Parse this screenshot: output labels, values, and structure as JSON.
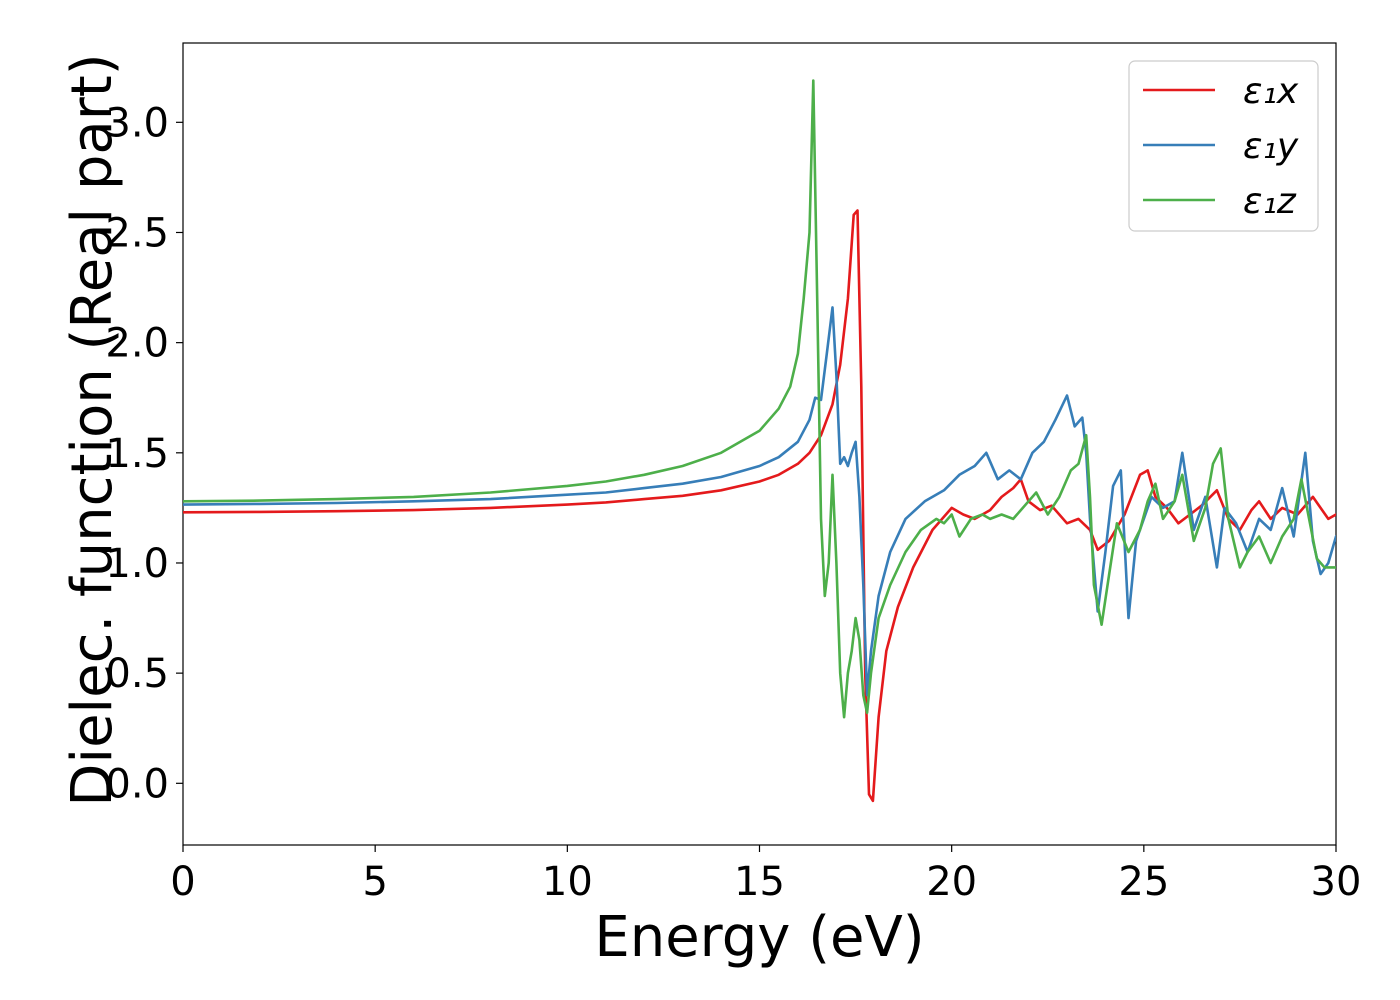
{
  "chart_data": {
    "type": "line",
    "title": "",
    "xlabel": "Energy (eV)",
    "ylabel": "Dielec. function (Real part)",
    "xlim": [
      0,
      30
    ],
    "ylim": [
      -0.28,
      3.36
    ],
    "xticks": [
      0,
      5,
      10,
      15,
      20,
      25,
      30
    ],
    "yticks": [
      0.0,
      0.5,
      1.0,
      1.5,
      2.0,
      2.5,
      3.0
    ],
    "xtick_labels": [
      "0",
      "5",
      "10",
      "15",
      "20",
      "25",
      "30"
    ],
    "ytick_labels": [
      "0.0",
      "0.5",
      "1.0",
      "1.5",
      "2.0",
      "2.5",
      "3.0"
    ],
    "grid": false,
    "legend_position": "top-right",
    "series": [
      {
        "name": "ε₁x",
        "color": "#e41a1c",
        "x": [
          0,
          2,
          4,
          6,
          8,
          10,
          11,
          12,
          13,
          14,
          15,
          15.5,
          16,
          16.3,
          16.6,
          16.9,
          17.1,
          17.3,
          17.45,
          17.55,
          17.65,
          17.75,
          17.85,
          17.95,
          18.1,
          18.3,
          18.6,
          19.0,
          19.5,
          20.0,
          20.3,
          20.6,
          21.0,
          21.3,
          21.6,
          21.8,
          22.0,
          22.3,
          22.6,
          23.0,
          23.3,
          23.6,
          23.8,
          24.1,
          24.5,
          24.9,
          25.1,
          25.3,
          25.6,
          25.9,
          26.2,
          26.5,
          26.9,
          27.2,
          27.5,
          27.8,
          28.0,
          28.3,
          28.6,
          29.0,
          29.4,
          29.8,
          30.0
        ],
        "y": [
          1.23,
          1.232,
          1.235,
          1.24,
          1.25,
          1.265,
          1.275,
          1.29,
          1.305,
          1.33,
          1.37,
          1.4,
          1.45,
          1.5,
          1.58,
          1.72,
          1.9,
          2.2,
          2.58,
          2.6,
          1.8,
          0.5,
          -0.05,
          -0.08,
          0.3,
          0.6,
          0.8,
          0.98,
          1.15,
          1.25,
          1.22,
          1.2,
          1.24,
          1.3,
          1.34,
          1.38,
          1.28,
          1.24,
          1.26,
          1.18,
          1.2,
          1.15,
          1.06,
          1.1,
          1.22,
          1.4,
          1.42,
          1.3,
          1.25,
          1.18,
          1.22,
          1.26,
          1.33,
          1.2,
          1.15,
          1.24,
          1.28,
          1.2,
          1.25,
          1.22,
          1.3,
          1.2,
          1.22
        ]
      },
      {
        "name": "ε₁y",
        "color": "#377eb8",
        "x": [
          0,
          2,
          4,
          6,
          8,
          10,
          11,
          12,
          13,
          14,
          15,
          15.5,
          16,
          16.3,
          16.45,
          16.6,
          16.75,
          16.9,
          17.0,
          17.1,
          17.2,
          17.3,
          17.4,
          17.5,
          17.6,
          17.7,
          17.8,
          17.9,
          18.1,
          18.4,
          18.8,
          19.3,
          19.8,
          20.2,
          20.6,
          20.9,
          21.2,
          21.5,
          21.8,
          22.1,
          22.4,
          22.7,
          23.0,
          23.2,
          23.4,
          23.5,
          23.6,
          23.8,
          24.0,
          24.2,
          24.4,
          24.6,
          24.8,
          25.0,
          25.2,
          25.5,
          25.8,
          26.0,
          26.3,
          26.6,
          26.9,
          27.1,
          27.4,
          27.7,
          28.0,
          28.3,
          28.6,
          28.9,
          29.2,
          29.4,
          29.6,
          29.8,
          30.0
        ],
        "y": [
          1.265,
          1.268,
          1.272,
          1.28,
          1.29,
          1.31,
          1.32,
          1.34,
          1.36,
          1.39,
          1.44,
          1.48,
          1.55,
          1.65,
          1.75,
          1.74,
          1.95,
          2.16,
          1.85,
          1.45,
          1.48,
          1.44,
          1.5,
          1.55,
          1.3,
          0.9,
          0.4,
          0.6,
          0.85,
          1.05,
          1.2,
          1.28,
          1.33,
          1.4,
          1.44,
          1.5,
          1.38,
          1.42,
          1.38,
          1.5,
          1.55,
          1.65,
          1.76,
          1.62,
          1.66,
          1.5,
          1.2,
          0.78,
          1.05,
          1.35,
          1.42,
          0.75,
          1.1,
          1.2,
          1.3,
          1.25,
          1.28,
          1.5,
          1.15,
          1.3,
          0.98,
          1.25,
          1.18,
          1.05,
          1.2,
          1.15,
          1.34,
          1.12,
          1.5,
          1.1,
          0.95,
          1.0,
          1.12
        ]
      },
      {
        "name": "ε₁z",
        "color": "#4daf4a",
        "x": [
          0,
          2,
          4,
          6,
          8,
          10,
          11,
          12,
          13,
          14,
          15,
          15.5,
          15.8,
          16.0,
          16.15,
          16.3,
          16.4,
          16.5,
          16.6,
          16.7,
          16.8,
          16.9,
          17.0,
          17.1,
          17.2,
          17.3,
          17.4,
          17.5,
          17.6,
          17.7,
          17.8,
          17.9,
          18.1,
          18.4,
          18.8,
          19.2,
          19.6,
          19.8,
          20.0,
          20.2,
          20.5,
          20.8,
          21.0,
          21.3,
          21.6,
          21.9,
          22.2,
          22.5,
          22.8,
          23.1,
          23.3,
          23.5,
          23.6,
          23.7,
          23.9,
          24.1,
          24.3,
          24.6,
          24.9,
          25.1,
          25.3,
          25.5,
          25.8,
          26.0,
          26.3,
          26.6,
          26.8,
          27.0,
          27.2,
          27.5,
          27.7,
          28.0,
          28.3,
          28.6,
          28.9,
          29.1,
          29.3,
          29.5,
          29.7,
          30.0
        ],
        "y": [
          1.28,
          1.283,
          1.29,
          1.3,
          1.32,
          1.35,
          1.37,
          1.4,
          1.44,
          1.5,
          1.6,
          1.7,
          1.8,
          1.95,
          2.2,
          2.5,
          3.19,
          2.2,
          1.2,
          0.85,
          1.0,
          1.4,
          1.0,
          0.5,
          0.3,
          0.5,
          0.6,
          0.75,
          0.65,
          0.4,
          0.32,
          0.5,
          0.75,
          0.9,
          1.05,
          1.15,
          1.2,
          1.18,
          1.22,
          1.12,
          1.2,
          1.22,
          1.2,
          1.22,
          1.2,
          1.26,
          1.32,
          1.22,
          1.3,
          1.42,
          1.45,
          1.58,
          1.3,
          0.9,
          0.72,
          0.95,
          1.18,
          1.05,
          1.15,
          1.28,
          1.36,
          1.2,
          1.28,
          1.4,
          1.1,
          1.25,
          1.45,
          1.52,
          1.2,
          0.98,
          1.05,
          1.12,
          1.0,
          1.12,
          1.2,
          1.38,
          1.2,
          1.02,
          0.98,
          0.98
        ]
      }
    ]
  }
}
